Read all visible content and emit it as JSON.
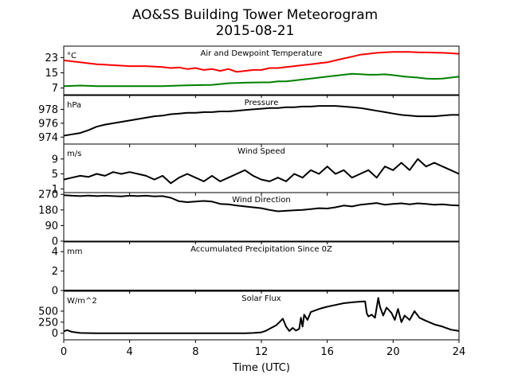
{
  "title_line1": "AO&SS Building Tower Meteorogram",
  "title_line2": "2015-08-21",
  "chart_data": {
    "type": "line",
    "xlabel": "Time (UTC)",
    "xlim": [
      0,
      24
    ],
    "xticks": [
      "0",
      "4",
      "8",
      "12",
      "16",
      "20",
      "24"
    ],
    "panels": [
      {
        "title": "Air and Dewpoint Temperature",
        "unit": "°C",
        "ylim": [
          3.5,
          29
        ],
        "yticks": [
          7,
          15,
          23
        ],
        "series": [
          {
            "color": "#ff0000",
            "x": [
              0,
              1,
              2,
              3,
              4,
              5,
              6,
              6.5,
              7,
              7.5,
              8,
              8.5,
              9,
              9.5,
              10,
              10.5,
              11,
              11.5,
              12,
              12.5,
              13,
              13.5,
              14,
              14.5,
              15,
              15.5,
              16,
              16.5,
              17,
              17.5,
              18,
              18.5,
              19,
              19.5,
              20,
              20.5,
              21,
              21.5,
              22,
              22.5,
              23,
              23.5,
              24
            ],
            "y": [
              21.5,
              20.5,
              19.5,
              19,
              18.5,
              18.5,
              18,
              17.5,
              17.8,
              17,
              17.5,
              16.5,
              17,
              16,
              17,
              15.5,
              16,
              16.5,
              16.5,
              17.5,
              17.5,
              18,
              18.5,
              19,
              19.5,
              20,
              20.5,
              21.5,
              22.5,
              23.5,
              24.5,
              25,
              25.5,
              25.8,
              26,
              26,
              26,
              25.8,
              25.7,
              25.6,
              25.5,
              25.3,
              25
            ]
          },
          {
            "color": "#008000",
            "x": [
              0,
              1,
              2,
              3,
              4,
              5,
              6,
              7,
              8,
              9,
              10,
              11,
              12,
              12.5,
              13,
              13.5,
              14,
              14.5,
              15,
              15.5,
              16,
              16.5,
              17,
              17.5,
              18,
              18.5,
              19,
              19.5,
              20,
              20.5,
              21,
              21.5,
              22,
              22.5,
              23,
              23.5,
              24
            ],
            "y": [
              8,
              8.3,
              8,
              8,
              8,
              8,
              8,
              8.3,
              8.5,
              8.7,
              9.5,
              9.8,
              10,
              10,
              10.5,
              10.5,
              11,
              11.5,
              12,
              12.5,
              13,
              13.5,
              14,
              14.5,
              14.3,
              14,
              14,
              14.2,
              13.8,
              13.2,
              12.8,
              12.5,
              12,
              11.8,
              12,
              12.5,
              13
            ]
          }
        ]
      },
      {
        "title": "Pressure",
        "unit": "hPa",
        "ylim": [
          973,
          980
        ],
        "yticks": [
          974,
          976,
          978
        ],
        "series": [
          {
            "color": "#000000",
            "x": [
              0,
              0.5,
              1,
              1.5,
              2,
              2.5,
              3,
              3.5,
              4,
              4.5,
              5,
              5.5,
              6,
              6.5,
              7,
              7.5,
              8,
              8.5,
              9,
              9.5,
              10,
              10.5,
              11,
              11.5,
              12,
              12.5,
              13,
              13.5,
              14,
              14.5,
              15,
              15.5,
              16,
              16.5,
              17,
              17.5,
              18,
              18.5,
              19,
              19.5,
              20,
              20.5,
              21,
              21.5,
              22,
              22.5,
              23,
              23.5,
              24
            ],
            "y": [
              974.2,
              974.4,
              974.6,
              975,
              975.5,
              975.8,
              976,
              976.2,
              976.4,
              976.6,
              976.8,
              977,
              977.1,
              977.3,
              977.4,
              977.5,
              977.5,
              977.6,
              977.6,
              977.7,
              977.7,
              977.8,
              977.9,
              978,
              978.1,
              978.2,
              978.2,
              978.3,
              978.3,
              978.4,
              978.4,
              978.5,
              978.5,
              978.5,
              978.4,
              978.3,
              978.2,
              978,
              977.8,
              977.6,
              977.4,
              977.2,
              977.1,
              977,
              977,
              977,
              977.1,
              977.2,
              977.2
            ]
          }
        ]
      },
      {
        "title": "Wind Speed",
        "unit": "m/s",
        "ylim": [
          0,
          13
        ],
        "yticks": [
          1,
          5,
          9
        ],
        "series": [
          {
            "color": "#000000",
            "x": [
              0,
              0.5,
              1,
              1.5,
              2,
              2.5,
              3,
              3.5,
              4,
              4.5,
              5,
              5.5,
              6,
              6.5,
              7,
              7.5,
              8,
              8.5,
              9,
              9.5,
              10,
              10.5,
              11,
              11.5,
              12,
              12.5,
              13,
              13.5,
              14,
              14.5,
              15,
              15.5,
              16,
              16.5,
              17,
              17.5,
              18,
              18.5,
              19,
              19.5,
              20,
              20.5,
              21,
              21.5,
              22,
              22.5,
              23,
              23.5,
              24
            ],
            "y": [
              3.5,
              4,
              4.5,
              4.2,
              5,
              4.5,
              5.5,
              5,
              5.5,
              5,
              4.5,
              3.5,
              4.5,
              2.5,
              4,
              5,
              4,
              3,
              4.5,
              3,
              4,
              5,
              6,
              4.5,
              3.5,
              3,
              4,
              3,
              5,
              4,
              6,
              5,
              7,
              5,
              6,
              4,
              5,
              6,
              4,
              7,
              6,
              8,
              6,
              9,
              7,
              8,
              7,
              6,
              5
            ]
          }
        ]
      },
      {
        "title": "Wind Direction",
        "unit": "",
        "ylim": [
          0,
          280
        ],
        "yticks": [
          0,
          90,
          180,
          270
        ],
        "series": [
          {
            "color": "#000000",
            "x": [
              0,
              0.5,
              1,
              1.5,
              2,
              2.5,
              3,
              3.5,
              4,
              4.5,
              5,
              5.5,
              6,
              6.5,
              7,
              7.5,
              8,
              8.5,
              9,
              9.5,
              10,
              10.5,
              11,
              11.5,
              12,
              12.5,
              13,
              13.5,
              14,
              14.5,
              15,
              15.5,
              16,
              16.5,
              17,
              17.5,
              18,
              18.5,
              19,
              19.5,
              20,
              20.5,
              21,
              21.5,
              22,
              22.5,
              23,
              23.5,
              24
            ],
            "y": [
              265,
              262,
              260,
              263,
              260,
              262,
              260,
              258,
              262,
              260,
              262,
              258,
              260,
              250,
              230,
              225,
              228,
              232,
              228,
              215,
              212,
              205,
              200,
              195,
              190,
              180,
              172,
              175,
              178,
              180,
              185,
              190,
              188,
              195,
              205,
              200,
              210,
              215,
              220,
              210,
              215,
              218,
              212,
              218,
              215,
              210,
              212,
              208,
              205
            ]
          }
        ]
      },
      {
        "title": "Accumulated Precipitation Since 0Z",
        "unit": "mm",
        "ylim": [
          0,
          5
        ],
        "yticks": [
          0,
          2,
          4
        ],
        "series": [
          {
            "color": "#000000",
            "x": [
              0,
              24
            ],
            "y": [
              0,
              0
            ]
          }
        ]
      },
      {
        "title": "Solar Flux",
        "unit": "W/m^2",
        "ylim": [
          -150,
          950
        ],
        "yticks": [
          0,
          250,
          500
        ],
        "series": [
          {
            "color": "#000000",
            "x": [
              0,
              0.2,
              0.5,
              1,
              2,
              4,
              6,
              8,
              10,
              11,
              11.5,
              12,
              12.3,
              12.6,
              12.9,
              13.1,
              13.3,
              13.5,
              13.7,
              13.9,
              14.1,
              14.3,
              14.4,
              14.5,
              14.6,
              14.8,
              15,
              15.3,
              15.6,
              16,
              16.5,
              17,
              17.5,
              18,
              18.3,
              18.4,
              18.5,
              18.7,
              18.9,
              19.1,
              19.2,
              19.4,
              19.6,
              19.9,
              20.1,
              20.3,
              20.5,
              20.7,
              21,
              21.3,
              21.6,
              22,
              22.5,
              23,
              23.5,
              24
            ],
            "y": [
              40,
              70,
              30,
              5,
              0,
              0,
              0,
              0,
              0,
              0,
              5,
              20,
              60,
              120,
              180,
              250,
              330,
              150,
              50,
              120,
              60,
              100,
              350,
              150,
              420,
              300,
              480,
              520,
              560,
              600,
              640,
              680,
              700,
              715,
              720,
              450,
              380,
              420,
              350,
              800,
              600,
              400,
              580,
              460,
              300,
              550,
              250,
              400,
              300,
              500,
              350,
              280,
              200,
              150,
              80,
              50
            ]
          }
        ]
      }
    ]
  }
}
